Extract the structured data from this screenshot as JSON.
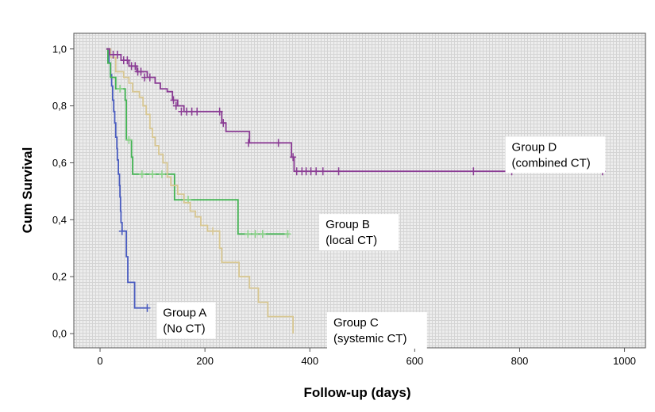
{
  "chart_data": {
    "type": "line",
    "title": "",
    "xlabel": "Follow-up (days)",
    "ylabel": "Cum Survival",
    "xlim": [
      -50,
      1040
    ],
    "ylim": [
      -0.05,
      1.055
    ],
    "x_ticks": [
      0,
      200,
      400,
      600,
      800,
      1000
    ],
    "x_tick_labels": [
      "0",
      "200",
      "400",
      "600",
      "800",
      "1000"
    ],
    "y_ticks": [
      0.0,
      0.2,
      0.4,
      0.6,
      0.8,
      1.0
    ],
    "y_tick_labels": [
      "0,0",
      "0,2",
      "0,4",
      "0,6",
      "0,8",
      "1,0"
    ],
    "grid": true,
    "step": true,
    "series": [
      {
        "label_line1": "Group A",
        "label_line2": "(No CT)",
        "color": "#4a5cc0",
        "points": [
          [
            12,
            1.0
          ],
          [
            17,
            0.95
          ],
          [
            20,
            0.91
          ],
          [
            22,
            0.87
          ],
          [
            24,
            0.82
          ],
          [
            26,
            0.78
          ],
          [
            28,
            0.74
          ],
          [
            30,
            0.69
          ],
          [
            32,
            0.65
          ],
          [
            33,
            0.61
          ],
          [
            35,
            0.56
          ],
          [
            37,
            0.52
          ],
          [
            38,
            0.48
          ],
          [
            39,
            0.43
          ],
          [
            40,
            0.39
          ],
          [
            42,
            0.36
          ],
          [
            48,
            0.36
          ],
          [
            50,
            0.27
          ],
          [
            53,
            0.18
          ],
          [
            62,
            0.18
          ],
          [
            66,
            0.09
          ],
          [
            90,
            0.09
          ]
        ],
        "censored": [
          [
            42,
            0.36
          ],
          [
            90,
            0.09
          ]
        ]
      },
      {
        "label_line1": "Group B",
        "label_line2": "(local CT)",
        "color": "#44b454",
        "points": [
          [
            12,
            1.0
          ],
          [
            15,
            0.95
          ],
          [
            20,
            0.9
          ],
          [
            30,
            0.86
          ],
          [
            45,
            0.86
          ],
          [
            48,
            0.82
          ],
          [
            50,
            0.68
          ],
          [
            58,
            0.68
          ],
          [
            60,
            0.62
          ],
          [
            62,
            0.56
          ],
          [
            140,
            0.56
          ],
          [
            142,
            0.47
          ],
          [
            260,
            0.47
          ],
          [
            263,
            0.35
          ],
          [
            360,
            0.35
          ]
        ],
        "censored": [
          [
            38,
            0.86
          ],
          [
            55,
            0.68
          ],
          [
            80,
            0.56
          ],
          [
            100,
            0.56
          ],
          [
            118,
            0.56
          ],
          [
            168,
            0.47
          ],
          [
            282,
            0.35
          ],
          [
            296,
            0.35
          ],
          [
            310,
            0.35
          ],
          [
            358,
            0.35
          ]
        ],
        "censored_marker_color": "#8ad488"
      },
      {
        "label_line1": "Group C",
        "label_line2": "(systemic CT)",
        "color": "#d8c792",
        "points": [
          [
            12,
            1.0
          ],
          [
            20,
            0.97
          ],
          [
            30,
            0.92
          ],
          [
            45,
            0.9
          ],
          [
            55,
            0.88
          ],
          [
            62,
            0.85
          ],
          [
            75,
            0.83
          ],
          [
            82,
            0.8
          ],
          [
            88,
            0.77
          ],
          [
            95,
            0.72
          ],
          [
            100,
            0.69
          ],
          [
            105,
            0.66
          ],
          [
            112,
            0.63
          ],
          [
            120,
            0.6
          ],
          [
            128,
            0.55
          ],
          [
            135,
            0.52
          ],
          [
            148,
            0.49
          ],
          [
            160,
            0.46
          ],
          [
            172,
            0.43
          ],
          [
            182,
            0.41
          ],
          [
            192,
            0.38
          ],
          [
            205,
            0.36
          ],
          [
            222,
            0.36
          ],
          [
            228,
            0.3
          ],
          [
            232,
            0.25
          ],
          [
            260,
            0.25
          ],
          [
            265,
            0.2
          ],
          [
            280,
            0.2
          ],
          [
            285,
            0.16
          ],
          [
            300,
            0.16
          ],
          [
            302,
            0.11
          ],
          [
            318,
            0.11
          ],
          [
            320,
            0.06
          ],
          [
            365,
            0.06
          ],
          [
            368,
            0.0
          ]
        ],
        "censored": [
          [
            215,
            0.36
          ]
        ]
      },
      {
        "label_line1": "Group D",
        "label_line2": "(combined CT)",
        "color": "#8a3c94",
        "points": [
          [
            12,
            1.0
          ],
          [
            18,
            0.98
          ],
          [
            40,
            0.96
          ],
          [
            55,
            0.94
          ],
          [
            70,
            0.92
          ],
          [
            90,
            0.9
          ],
          [
            105,
            0.88
          ],
          [
            115,
            0.86
          ],
          [
            128,
            0.85
          ],
          [
            138,
            0.82
          ],
          [
            148,
            0.8
          ],
          [
            160,
            0.78
          ],
          [
            228,
            0.78
          ],
          [
            232,
            0.74
          ],
          [
            240,
            0.71
          ],
          [
            280,
            0.71
          ],
          [
            285,
            0.67
          ],
          [
            358,
            0.67
          ],
          [
            365,
            0.62
          ],
          [
            370,
            0.57
          ],
          [
            960,
            0.57
          ]
        ],
        "censored": [
          [
            25,
            0.98
          ],
          [
            33,
            0.98
          ],
          [
            45,
            0.96
          ],
          [
            52,
            0.96
          ],
          [
            60,
            0.94
          ],
          [
            67,
            0.94
          ],
          [
            72,
            0.92
          ],
          [
            78,
            0.92
          ],
          [
            85,
            0.9
          ],
          [
            95,
            0.9
          ],
          [
            140,
            0.82
          ],
          [
            145,
            0.8
          ],
          [
            155,
            0.78
          ],
          [
            165,
            0.78
          ],
          [
            175,
            0.78
          ],
          [
            185,
            0.78
          ],
          [
            228,
            0.78
          ],
          [
            235,
            0.74
          ],
          [
            283,
            0.67
          ],
          [
            340,
            0.67
          ],
          [
            368,
            0.62
          ],
          [
            375,
            0.57
          ],
          [
            385,
            0.57
          ],
          [
            393,
            0.57
          ],
          [
            402,
            0.57
          ],
          [
            412,
            0.57
          ],
          [
            425,
            0.57
          ],
          [
            455,
            0.57
          ],
          [
            712,
            0.57
          ],
          [
            785,
            0.57
          ],
          [
            958,
            0.57
          ]
        ]
      }
    ],
    "annotations": [
      {
        "series": 0,
        "x": 120,
        "y": 0.06
      },
      {
        "series": 1,
        "x": 430,
        "y": 0.37
      },
      {
        "series": 2,
        "x": 445,
        "y": 0.025
      },
      {
        "series": 3,
        "x": 785,
        "y": 0.642
      }
    ]
  }
}
